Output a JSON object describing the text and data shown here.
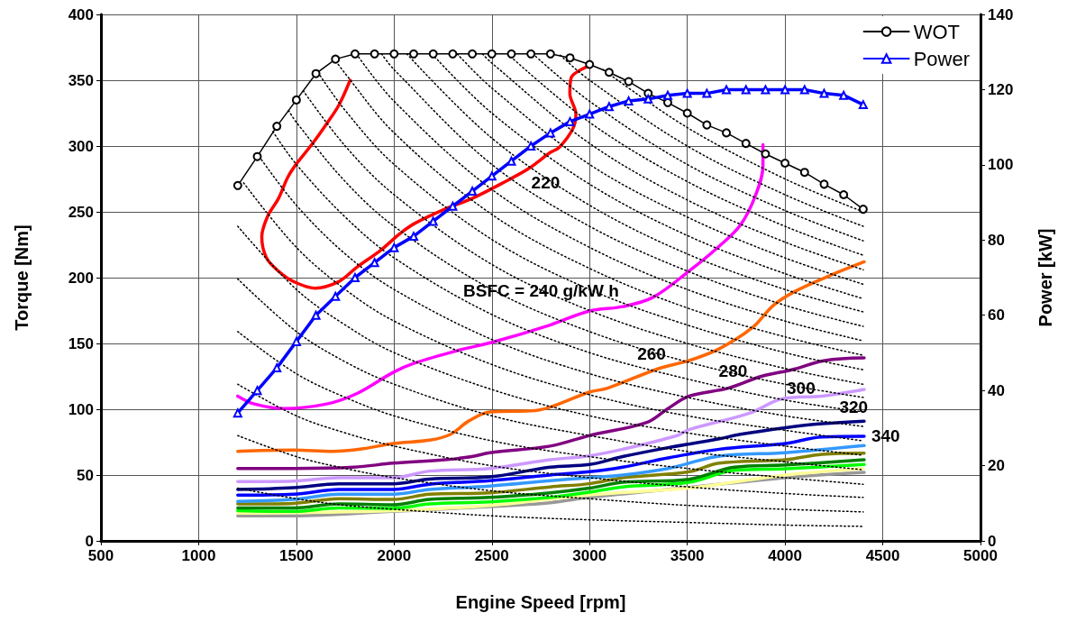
{
  "chart_data": {
    "type": "line",
    "xlabel": "Engine Speed [rpm]",
    "ylabel": "Torque [Nm]",
    "y2label": "Power [kW]",
    "xlim": [
      500,
      5000
    ],
    "xticks": [
      500,
      1000,
      1500,
      2000,
      2500,
      3000,
      3500,
      4000,
      4500,
      5000
    ],
    "ylim": [
      0,
      400
    ],
    "yticks": [
      0,
      50,
      100,
      150,
      200,
      250,
      300,
      350,
      400
    ],
    "y2lim": [
      0,
      140
    ],
    "y2ticks": [
      0,
      20,
      40,
      60,
      80,
      100,
      120,
      140
    ],
    "grid": true,
    "legend": "top right",
    "annotations": [
      {
        "text": "220",
        "x": 2775,
        "y": 272
      },
      {
        "text": "BSFC = 240 g/kW h",
        "x": 2752,
        "y": 190
      },
      {
        "text": "260",
        "x": 3317,
        "y": 142
      },
      {
        "text": "280",
        "x": 3734,
        "y": 129
      },
      {
        "text": "300",
        "x": 4082,
        "y": 116
      },
      {
        "text": "320",
        "x": 4351,
        "y": 102
      },
      {
        "text": "340",
        "x": 4405,
        "y": 79.5
      }
    ],
    "series": [
      {
        "color": "#000000",
        "marker": "none",
        "line_style": "dotted",
        "x": [
          1200,
          1500,
          1750,
          2000,
          2500,
          3000,
          3500,
          4000,
          4400
        ],
        "values": [
          40,
          32,
          27,
          24,
          19,
          16,
          14,
          12,
          11
        ]
      },
      {
        "color": "#000000",
        "marker": "none",
        "line_style": "dotted",
        "x": [
          1200,
          1500,
          1750,
          2000,
          2500,
          3000,
          3500,
          4000,
          4400
        ],
        "values": [
          80,
          64,
          55,
          48,
          38,
          32,
          27,
          24,
          22
        ]
      },
      {
        "color": "#000000",
        "marker": "none",
        "line_style": "dotted",
        "x": [
          1200,
          1500,
          1750,
          2000,
          2500,
          3000,
          3500,
          4000,
          4400
        ],
        "values": [
          119,
          95,
          82,
          72,
          57,
          48,
          41,
          36,
          33
        ]
      },
      {
        "color": "#000000",
        "marker": "none",
        "line_style": "dotted",
        "x": [
          1200,
          1500,
          1750,
          2000,
          2500,
          3000,
          3500,
          4000,
          4400
        ],
        "values": [
          159,
          127,
          109,
          95,
          76,
          64,
          55,
          48,
          43
        ]
      },
      {
        "color": "#000000",
        "marker": "none",
        "line_style": "dotted",
        "x": [
          1200,
          1500,
          1750,
          2000,
          2500,
          3000,
          3500,
          4000,
          4400
        ],
        "values": [
          199,
          159,
          136,
          119,
          95,
          80,
          68,
          60,
          54
        ]
      },
      {
        "color": "#000000",
        "marker": "none",
        "line_style": "dotted",
        "x": [
          1200,
          1500,
          1750,
          2000,
          2500,
          3000,
          3500,
          4000,
          4400
        ],
        "values": [
          239,
          191,
          164,
          143,
          115,
          95,
          82,
          72,
          65
        ]
      },
      {
        "color": "#000000",
        "marker": "none",
        "line_style": "dotted",
        "x": [
          1230,
          1500,
          1750,
          2000,
          2500,
          3000,
          3500,
          4000,
          4400
        ],
        "values": [
          272,
          223,
          191,
          167,
          134,
          111,
          95,
          84,
          76
        ]
      },
      {
        "color": "#000000",
        "marker": "none",
        "line_style": "dotted",
        "x": [
          1310,
          1500,
          1750,
          2000,
          2500,
          3000,
          3500,
          4000,
          4400
        ],
        "values": [
          292,
          255,
          218,
          191,
          153,
          127,
          109,
          95,
          87
        ]
      },
      {
        "color": "#000000",
        "marker": "none",
        "line_style": "dotted",
        "x": [
          1380,
          1500,
          1750,
          2000,
          2500,
          3000,
          3500,
          4000,
          4400
        ],
        "values": [
          311,
          286,
          246,
          215,
          172,
          143,
          123,
          107,
          98
        ]
      },
      {
        "color": "#000000",
        "marker": "none",
        "line_style": "dotted",
        "x": [
          1460,
          1500,
          1750,
          2000,
          2500,
          3000,
          3500,
          4000,
          4400
        ],
        "values": [
          327,
          318,
          273,
          239,
          191,
          159,
          136,
          119,
          109
        ]
      },
      {
        "color": "#000000",
        "marker": "none",
        "line_style": "dotted",
        "x": [
          1535,
          1750,
          2000,
          2500,
          3000,
          3500,
          4000,
          4400
        ],
        "values": [
          342,
          300,
          263,
          210,
          175,
          150,
          131,
          119
        ]
      },
      {
        "color": "#000000",
        "marker": "none",
        "line_style": "dotted",
        "x": [
          1610,
          1750,
          2000,
          2500,
          3000,
          3500,
          4000,
          4400
        ],
        "values": [
          356,
          327,
          286,
          229,
          191,
          164,
          143,
          130
        ]
      },
      {
        "color": "#000000",
        "marker": "none",
        "line_style": "dotted",
        "x": [
          1690,
          1750,
          2000,
          2500,
          3000,
          3500,
          4000,
          4400
        ],
        "values": [
          367,
          355,
          310,
          248,
          207,
          177,
          155,
          141
        ]
      },
      {
        "color": "#000000",
        "marker": "none",
        "line_style": "dotted",
        "x": [
          1807,
          2000,
          2500,
          3000,
          3500,
          4000,
          4400
        ],
        "values": [
          370,
          334,
          267,
          223,
          191,
          167,
          152
        ]
      },
      {
        "color": "#000000",
        "marker": "none",
        "line_style": "dotted",
        "x": [
          1936,
          2000,
          2500,
          3000,
          3500,
          4000,
          4400
        ],
        "values": [
          370,
          358,
          286,
          239,
          205,
          179,
          163
        ]
      },
      {
        "color": "#000000",
        "marker": "none",
        "line_style": "dotted",
        "x": [
          2065,
          2500,
          3000,
          3500,
          4000,
          4400
        ],
        "values": [
          370,
          306,
          255,
          218,
          191,
          174
        ]
      },
      {
        "color": "#000000",
        "marker": "none",
        "line_style": "dotted",
        "x": [
          2194,
          2500,
          3000,
          3500,
          4000,
          4400
        ],
        "values": [
          370,
          325,
          271,
          232,
          203,
          184
        ]
      },
      {
        "color": "#000000",
        "marker": "none",
        "line_style": "dotted",
        "x": [
          2323,
          2500,
          3000,
          3500,
          4000,
          4400
        ],
        "values": [
          370,
          344,
          286,
          246,
          215,
          195
        ]
      },
      {
        "color": "#000000",
        "marker": "none",
        "line_style": "dotted",
        "x": [
          2452,
          2500,
          3000,
          3500,
          4000,
          4400
        ],
        "values": [
          370,
          363,
          302,
          259,
          227,
          206
        ]
      },
      {
        "color": "#000000",
        "marker": "none",
        "line_style": "dotted",
        "x": [
          2581,
          3000,
          3500,
          4000,
          4400
        ],
        "values": [
          370,
          318,
          273,
          239,
          217
        ]
      },
      {
        "color": "#000000",
        "marker": "none",
        "line_style": "dotted",
        "x": [
          2710,
          3000,
          3500,
          4000,
          4400
        ],
        "values": [
          370,
          334,
          286,
          251,
          228
        ]
      },
      {
        "color": "#000000",
        "marker": "none",
        "line_style": "dotted",
        "x": [
          2850,
          3000,
          3500,
          4000,
          4400
        ],
        "values": [
          369,
          350,
          300,
          263,
          239
        ]
      },
      {
        "color": "#000000",
        "marker": "none",
        "line_style": "dotted",
        "x": [
          3070,
          3500,
          4000,
          4400
        ],
        "values": [
          358,
          314,
          275,
          250
        ]
      },
      {
        "color": "#999999",
        "marker": "none",
        "line_style": "solid",
        "x": [
          1200,
          1486,
          1995,
          2489,
          2798,
          2999,
          3509,
          4003,
          4405
        ],
        "values": [
          19,
          19,
          22.4,
          26,
          29,
          33,
          40.6,
          48,
          52
        ]
      },
      {
        "color": "#ffff99",
        "marker": "none",
        "line_style": "solid",
        "x": [
          1200,
          2000,
          2500,
          3000,
          3500,
          4000,
          4400
        ],
        "values": [
          21,
          23,
          27,
          35,
          40,
          50,
          55
        ]
      },
      {
        "color": "#00ff00",
        "marker": "none",
        "line_style": "solid",
        "x": [
          1200,
          1486,
          1717,
          1995,
          2181,
          2489,
          2798,
          2999,
          3169,
          3509,
          3741,
          4003,
          4405
        ],
        "values": [
          23,
          22.4,
          25,
          24.7,
          28,
          29.7,
          33,
          37,
          41,
          44.5,
          53.6,
          54.8,
          58
        ]
      },
      {
        "color": "#008000",
        "marker": "none",
        "line_style": "solid",
        "x": [
          1200,
          1486,
          1717,
          1995,
          2181,
          2489,
          2798,
          2999,
          3169,
          3509,
          3741,
          4003,
          4405
        ],
        "values": [
          25,
          25,
          28,
          27.4,
          31.5,
          33,
          36.5,
          40,
          44.5,
          46.8,
          56,
          57.7,
          61.6
        ]
      },
      {
        "color": "#808000",
        "marker": "none",
        "line_style": "solid",
        "x": [
          1200,
          1486,
          1717,
          1995,
          2181,
          2489,
          2798,
          2999,
          3169,
          3509,
          3664,
          4003,
          4189,
          4405
        ],
        "values": [
          28,
          28.5,
          32,
          31.5,
          35.4,
          36.5,
          41,
          43.4,
          48,
          52.5,
          59,
          61.6,
          65.8,
          66.6
        ]
      },
      {
        "color": "#3399ff",
        "marker": "none",
        "line_style": "solid",
        "x": [
          1200,
          1486,
          1717,
          1995,
          2181,
          2489,
          2798,
          2999,
          3169,
          3401,
          3664,
          4003,
          4405
        ],
        "values": [
          30,
          31.5,
          35.4,
          35.4,
          39,
          41.6,
          45.7,
          48,
          50,
          55,
          64.4,
          67,
          72.4
        ]
      },
      {
        "color": "#0000ff",
        "marker": "none",
        "line_style": "solid",
        "x": [
          1200,
          1486,
          1717,
          1995,
          2181,
          2489,
          2798,
          2999,
          3169,
          3401,
          3664,
          4003,
          4189,
          4405
        ],
        "values": [
          34.7,
          35.4,
          39,
          39,
          43,
          45.7,
          50,
          52.5,
          56,
          63,
          69.6,
          74,
          79,
          79.5
        ]
      },
      {
        "color": "#000080",
        "marker": "none",
        "line_style": "solid",
        "x": [
          1200,
          1486,
          1717,
          1995,
          2181,
          2489,
          2798,
          2999,
          3169,
          3401,
          3664,
          3772,
          4003,
          4189,
          4405
        ],
        "values": [
          39,
          40.4,
          43.4,
          43.4,
          47,
          48.6,
          56,
          58,
          64,
          70.8,
          77.6,
          81,
          86,
          89,
          91
        ]
      },
      {
        "color": "#cc99ff",
        "marker": "none",
        "line_style": "solid",
        "x": [
          1200,
          1486,
          1717,
          1995,
          2181,
          2489,
          2798,
          2999,
          3169,
          3447,
          3509,
          3818,
          3988,
          4189,
          4405
        ],
        "values": [
          45,
          45.4,
          48,
          48,
          53,
          55,
          61.6,
          64.6,
          69.6,
          80,
          84.5,
          97,
          108,
          110,
          115
        ]
      },
      {
        "color": "#800080",
        "marker": "none",
        "line_style": "solid",
        "x": [
          1200,
          1486,
          1794,
          1995,
          2258,
          2397,
          2489,
          2798,
          2999,
          3293,
          3401,
          3509,
          3709,
          3879,
          4034,
          4204,
          4405
        ],
        "values": [
          55,
          55,
          56,
          59,
          61.6,
          64,
          67,
          72,
          80,
          90,
          100.5,
          110,
          116,
          125,
          130,
          137,
          139
        ]
      },
      {
        "color": "#ff6600",
        "marker": "none",
        "line_style": "solid",
        "x": [
          1200,
          1486,
          1686,
          1841,
          1995,
          2181,
          2289,
          2381,
          2489,
          2721,
          2798,
          2999,
          3092,
          3355,
          3509,
          3664,
          3833,
          3941,
          4050,
          4220,
          4405
        ],
        "values": [
          68,
          69,
          68,
          70,
          74,
          76.5,
          81,
          91,
          98,
          99,
          101.6,
          113,
          116,
          131,
          137,
          146,
          162,
          179,
          189.5,
          201,
          212
        ]
      },
      {
        "color": "#ff00ff",
        "marker": "none",
        "line_style": "solid",
        "x": [
          1200,
          1285,
          1439,
          1655,
          1810,
          1995,
          2103,
          2335,
          2505,
          2798,
          2999,
          3169,
          3324,
          3509,
          3664,
          3772,
          3849,
          3887,
          3887
        ],
        "values": [
          110,
          104,
          100.5,
          104,
          112,
          128,
          135,
          145,
          151,
          164,
          174.7,
          178,
          185,
          205,
          224,
          240,
          262.5,
          285,
          301
        ]
      },
      {
        "color": "#ff0000",
        "marker": "none",
        "line_style": "solid",
        "x": [
          1775,
          1717,
          1655,
          1578,
          1493,
          1455,
          1408,
          1354,
          1323,
          1347,
          1408,
          1486,
          1594,
          1717,
          1810,
          1933,
          2026,
          2103,
          2258,
          2397,
          2582,
          2690,
          2798,
          2845,
          2914,
          2930,
          2899,
          2906,
          2999
        ],
        "values": [
          350,
          331,
          317,
          301,
          285,
          276,
          260,
          247,
          231,
          215,
          205,
          197,
          192,
          197,
          208,
          221,
          233,
          241,
          252,
          260,
          274,
          283,
          295,
          299,
          313,
          324,
          340,
          352,
          361
        ]
      },
      {
        "name": "WOT",
        "color": "#000000",
        "marker": "circle",
        "line_style": "solid",
        "x": [
          1200,
          1300,
          1400,
          1500,
          1600,
          1700,
          1800,
          1900,
          2000,
          2100,
          2200,
          2300,
          2400,
          2500,
          2600,
          2700,
          2800,
          2900,
          3000,
          3100,
          3200,
          3300,
          3400,
          3500,
          3600,
          3700,
          3800,
          3900,
          4000,
          4100,
          4200,
          4300,
          4400
        ],
        "values": [
          270,
          292,
          315,
          335,
          355,
          366,
          370,
          370,
          370,
          370,
          370,
          370,
          370,
          370,
          370,
          370,
          370,
          367,
          362,
          356,
          349,
          340,
          333,
          325,
          316,
          310,
          302,
          294,
          287,
          280,
          271,
          263,
          252
        ]
      },
      {
        "name": "Power",
        "color": "#0000ff",
        "marker": "triangle",
        "line_style": "solid",
        "axis": "y2",
        "x": [
          1200,
          1300,
          1400,
          1500,
          1600,
          1700,
          1800,
          1900,
          2000,
          2100,
          2200,
          2300,
          2400,
          2500,
          2600,
          2700,
          2800,
          2900,
          3000,
          3100,
          3200,
          3300,
          3400,
          3500,
          3600,
          3700,
          3800,
          3900,
          4000,
          4100,
          4200,
          4300,
          4400
        ],
        "values": [
          34,
          40,
          46,
          53,
          60,
          65,
          70,
          74,
          78,
          81,
          85,
          89,
          93,
          97,
          101,
          105,
          108.5,
          111.5,
          113.5,
          115.5,
          117,
          117.5,
          118.5,
          119,
          119,
          120,
          120,
          120,
          120,
          120,
          119,
          118.5,
          116
        ]
      }
    ]
  }
}
